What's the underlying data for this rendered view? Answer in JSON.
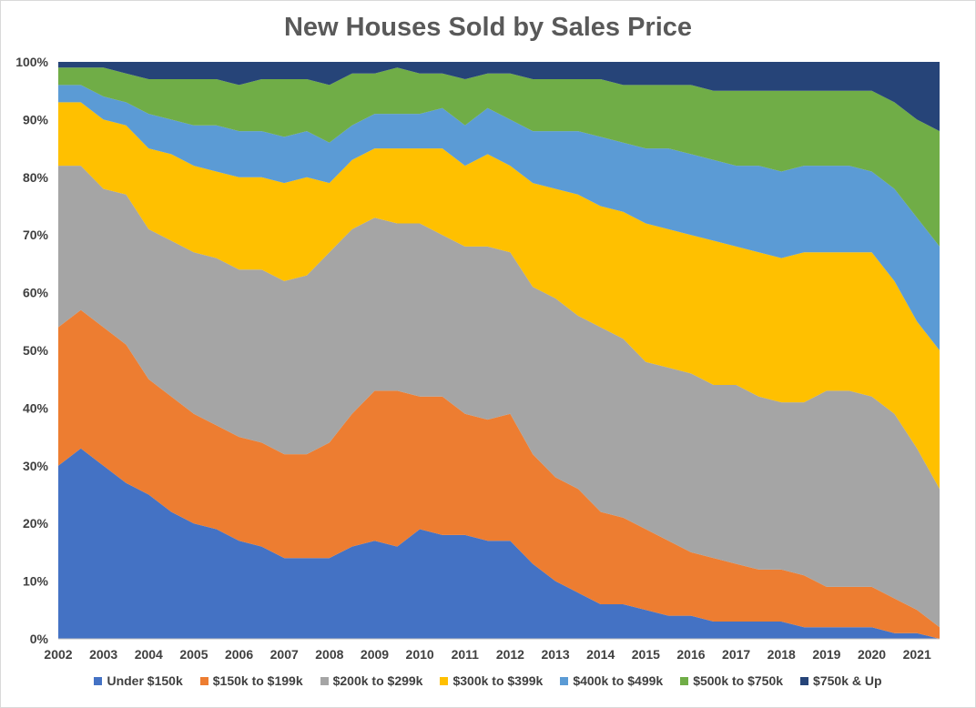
{
  "chart_data": {
    "type": "area",
    "stacked": true,
    "percent": true,
    "title": "New Houses Sold by Sales Price",
    "xlabel": "",
    "ylabel": "",
    "ylim": [
      0,
      100
    ],
    "y_ticks": [
      "0%",
      "10%",
      "20%",
      "30%",
      "40%",
      "50%",
      "60%",
      "70%",
      "80%",
      "90%",
      "100%"
    ],
    "x_ticks": [
      "2002",
      "2003",
      "2004",
      "2005",
      "2006",
      "2007",
      "2008",
      "2009",
      "2010",
      "2011",
      "2012",
      "2013",
      "2014",
      "2015",
      "2016",
      "2017",
      "2018",
      "2019",
      "2020",
      "2021"
    ],
    "x": [
      2002.0,
      2002.5,
      2003.0,
      2003.5,
      2004.0,
      2004.5,
      2005.0,
      2005.5,
      2006.0,
      2006.5,
      2007.0,
      2007.5,
      2008.0,
      2008.5,
      2009.0,
      2009.5,
      2010.0,
      2010.5,
      2011.0,
      2011.5,
      2012.0,
      2012.5,
      2013.0,
      2013.5,
      2014.0,
      2014.5,
      2015.0,
      2015.5,
      2016.0,
      2016.5,
      2017.0,
      2017.5,
      2018.0,
      2018.5,
      2019.0,
      2019.5,
      2020.0,
      2020.5,
      2021.0,
      2021.5
    ],
    "legend_position": "bottom",
    "series": [
      {
        "name": "Under $150k",
        "color": "#4472c4",
        "values": [
          30,
          33,
          30,
          27,
          25,
          22,
          20,
          19,
          17,
          16,
          14,
          14,
          14,
          16,
          17,
          16,
          19,
          18,
          18,
          17,
          17,
          13,
          10,
          8,
          6,
          6,
          5,
          4,
          4,
          3,
          3,
          3,
          3,
          2,
          2,
          2,
          2,
          1,
          1,
          0
        ]
      },
      {
        "name": "$150k to $199k",
        "color": "#ed7d31",
        "values": [
          24,
          24,
          24,
          24,
          20,
          20,
          19,
          18,
          18,
          18,
          18,
          18,
          20,
          23,
          26,
          27,
          23,
          24,
          21,
          21,
          22,
          19,
          18,
          18,
          16,
          15,
          14,
          13,
          11,
          11,
          10,
          9,
          9,
          9,
          7,
          7,
          7,
          6,
          4,
          2
        ]
      },
      {
        "name": "$200k to $299k",
        "color": "#a5a5a5",
        "values": [
          28,
          25,
          24,
          26,
          26,
          27,
          28,
          29,
          29,
          30,
          30,
          31,
          33,
          32,
          30,
          29,
          30,
          28,
          29,
          30,
          28,
          29,
          31,
          30,
          32,
          31,
          29,
          30,
          31,
          30,
          31,
          30,
          29,
          30,
          34,
          34,
          33,
          32,
          28,
          24
        ]
      },
      {
        "name": "$300k to $399k",
        "color": "#ffc000",
        "values": [
          11,
          11,
          12,
          12,
          14,
          15,
          15,
          15,
          16,
          16,
          17,
          17,
          12,
          12,
          12,
          13,
          13,
          15,
          14,
          16,
          15,
          18,
          19,
          21,
          21,
          22,
          24,
          24,
          24,
          25,
          24,
          25,
          25,
          26,
          24,
          24,
          25,
          23,
          22,
          24
        ]
      },
      {
        "name": "$400k to $499k",
        "color": "#5b9bd5",
        "values": [
          3,
          3,
          4,
          4,
          6,
          6,
          7,
          8,
          8,
          8,
          8,
          8,
          7,
          6,
          6,
          6,
          6,
          7,
          7,
          8,
          8,
          9,
          10,
          11,
          12,
          12,
          13,
          14,
          14,
          14,
          14,
          15,
          15,
          15,
          15,
          15,
          14,
          16,
          18,
          18
        ]
      },
      {
        "name": "$500k to $750k",
        "color": "#70ad47",
        "values": [
          3,
          3,
          5,
          5,
          6,
          7,
          8,
          8,
          8,
          9,
          10,
          9,
          10,
          9,
          7,
          8,
          7,
          6,
          8,
          6,
          8,
          9,
          9,
          9,
          10,
          10,
          11,
          11,
          12,
          12,
          13,
          13,
          14,
          13,
          13,
          13,
          14,
          15,
          17,
          20
        ]
      },
      {
        "name": "$750k & Up",
        "color": "#264478",
        "values": [
          1,
          1,
          1,
          2,
          3,
          3,
          3,
          3,
          4,
          3,
          3,
          3,
          4,
          3,
          4,
          3,
          2,
          2,
          3,
          2,
          2,
          3,
          3,
          3,
          3,
          4,
          4,
          4,
          4,
          5,
          5,
          5,
          5,
          5,
          5,
          5,
          5,
          7,
          10,
          12
        ]
      }
    ]
  }
}
